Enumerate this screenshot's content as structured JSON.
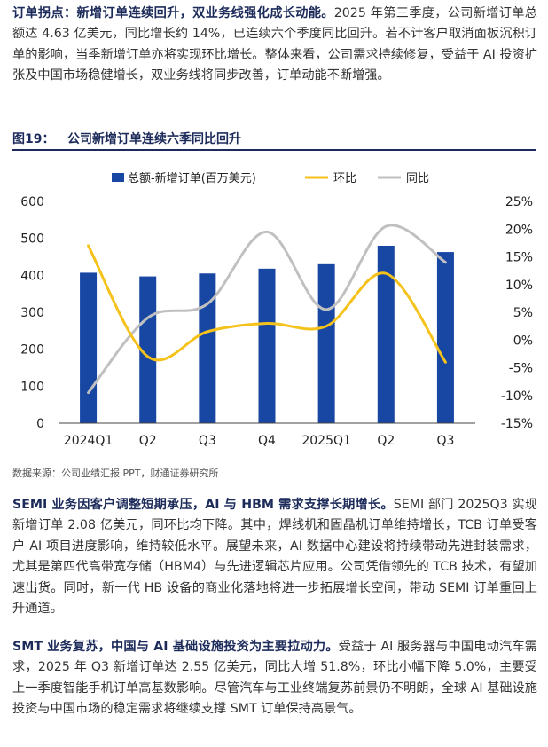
{
  "intro": {
    "lead": "订单拐点：新增订单连续回升，双业务线强化成长动能。",
    "body": "2025 年第三季度，公司新增订单总额达 4.63 亿美元，同比增长约 14%，已连续六个季度同比回升。若不计客户取消面板沉积订单的影响，当季新增订单亦将实现环比增长。整体来看，公司需求持续修复，受益于 AI 投资扩张及中国市场稳健增长，双业务线将同步改善，订单动能不断增强。"
  },
  "figure": {
    "label": "图19：",
    "title": "公司新增订单连续六季同比回升",
    "source": "数据来源：公司业绩汇报 PPT，财通证券研究所"
  },
  "chart_data": {
    "type": "bar",
    "categories": [
      "2024Q1",
      "Q2",
      "Q3",
      "Q4",
      "2025Q1",
      "Q2",
      "Q3"
    ],
    "series": [
      {
        "name": "总额-新增订单(百万美元)",
        "type": "bar",
        "axis": "left",
        "color": "#1846a3",
        "values": [
          407,
          397,
          405,
          418,
          430,
          480,
          463
        ]
      },
      {
        "name": "环比",
        "type": "line",
        "axis": "right",
        "color": "#f5c21b",
        "values": [
          17,
          -3,
          1.5,
          3,
          2.5,
          12,
          -4
        ]
      },
      {
        "name": "同比",
        "type": "line",
        "axis": "right",
        "color": "#c0c0c0",
        "values": [
          -9.5,
          4,
          6.5,
          19.5,
          5.5,
          20.5,
          14
        ]
      }
    ],
    "left_axis": {
      "ticks": [
        "0",
        "100",
        "200",
        "300",
        "400",
        "500",
        "600"
      ],
      "range": [
        0,
        600
      ]
    },
    "right_axis": {
      "ticks": [
        "-15%",
        "-10%",
        "-5%",
        "0%",
        "5%",
        "10%",
        "15%",
        "20%",
        "25%"
      ],
      "range": [
        -15,
        25
      ]
    },
    "legend_position": "top"
  },
  "semi": {
    "lead": "SEMI 业务因客户调整短期承压，AI 与 HBM 需求支撑长期增长。",
    "body": "SEMI 部门 2025Q3 实现新增订单 2.08 亿美元，同环比均下降。其中，焊线机和固晶机订单维持增长，TCB 订单受客户 AI 项目进度影响，维持较低水平。展望未来，AI 数据中心建设将持续带动先进封装需求，尤其是第四代高带宽存储（HBM4）与先进逻辑芯片应用。公司凭借领先的 TCB 技术，有望加速出货。同时，新一代 HB 设备的商业化落地将进一步拓展增长空间，带动 SEMI 订单重回上升通道。"
  },
  "smt": {
    "lead": "SMT 业务复苏，中国与 AI 基础设施投资为主要拉动力。",
    "body": "受益于 AI 服务器与中国电动汽车需求，2025 年 Q3 新增订单达 2.55 亿美元，同比大增 51.8%，环比小幅下降 5.0%，主要受上一季度智能手机订单高基数影响。尽管汽车与工业终端复苏前景仍不明朗，全球 AI 基础设施投资与中国市场的稳定需求将继续支撑 SMT 订单保持高景气。"
  }
}
